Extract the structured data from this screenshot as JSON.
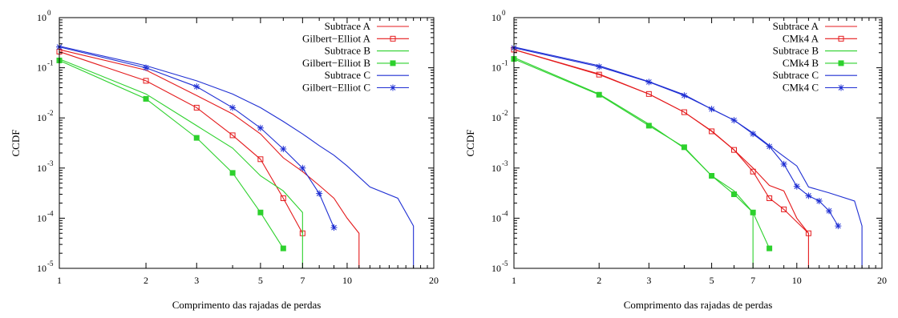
{
  "colors": {
    "red": "#e41a1c",
    "green": "#2dd12d",
    "blue": "#1f2fd3"
  },
  "chart_data": [
    {
      "type": "line",
      "xscale": "log",
      "yscale": "log",
      "xlim": [
        1,
        20
      ],
      "ylim": [
        1e-05,
        1
      ],
      "xlabel": "Comprimento das rajadas de perdas",
      "ylabel": "CCDF",
      "x_ticks": [
        1,
        2,
        3,
        5,
        7,
        10,
        20
      ],
      "x_tick_labels": [
        "1",
        "2",
        "3",
        "5",
        "7",
        "10",
        "20"
      ],
      "y_ticks": [
        1,
        0.1,
        0.01,
        0.001,
        0.0001,
        1e-05
      ],
      "y_tick_mantissa": [
        "10",
        "10",
        "10",
        "10",
        "10",
        "10"
      ],
      "y_tick_exponents": [
        "0",
        "-1",
        "-2",
        "-3",
        "-4",
        "-5"
      ],
      "legend_position": "top-right",
      "series": [
        {
          "name": "Subtrace A",
          "color": "red",
          "marker": "none",
          "x": [
            1,
            2,
            3,
            4,
            5,
            6,
            7,
            8,
            9,
            10,
            11,
            11
          ],
          "y": [
            0.23,
            0.09,
            0.028,
            0.012,
            0.0048,
            0.0016,
            0.00085,
            0.00045,
            0.00025,
            0.0001,
            5e-05,
            1e-05
          ]
        },
        {
          "name": "Gilbert−Elliot A",
          "color": "red",
          "marker": "square",
          "x": [
            1,
            2,
            3,
            4,
            5,
            6,
            7
          ],
          "y": [
            0.21,
            0.055,
            0.016,
            0.0045,
            0.0015,
            0.00025,
            5e-05
          ]
        },
        {
          "name": "Subtrace B",
          "color": "green",
          "marker": "none",
          "x": [
            1,
            2,
            3,
            4,
            5,
            6,
            7,
            7
          ],
          "y": [
            0.15,
            0.03,
            0.007,
            0.0025,
            0.0007,
            0.00035,
            0.00013,
            1e-05
          ]
        },
        {
          "name": "Gilbert−Elliot B",
          "color": "green",
          "marker": "filled-square",
          "x": [
            1,
            2,
            3,
            4,
            5,
            6
          ],
          "y": [
            0.14,
            0.024,
            0.004,
            0.0008,
            0.00013,
            2.5e-05
          ]
        },
        {
          "name": "Subtrace C",
          "color": "blue",
          "marker": "none",
          "x": [
            1,
            2,
            3,
            4,
            5,
            6,
            7,
            8,
            9,
            10,
            12,
            15,
            17,
            17
          ],
          "y": [
            0.27,
            0.11,
            0.055,
            0.03,
            0.016,
            0.0085,
            0.0048,
            0.0028,
            0.0018,
            0.0011,
            0.00042,
            0.00025,
            7e-05,
            1e-05
          ]
        },
        {
          "name": "Gilbert−Elliot C",
          "color": "blue",
          "marker": "star",
          "x": [
            1,
            2,
            3,
            4,
            5,
            6,
            7,
            8,
            9
          ],
          "y": [
            0.26,
            0.1,
            0.042,
            0.016,
            0.0063,
            0.0024,
            0.001,
            0.00031,
            6.5e-05
          ]
        }
      ]
    },
    {
      "type": "line",
      "xscale": "log",
      "yscale": "log",
      "xlim": [
        1,
        20
      ],
      "ylim": [
        1e-05,
        1
      ],
      "xlabel": "Comprimento das rajadas de perdas",
      "ylabel": "CCDF",
      "x_ticks": [
        1,
        2,
        3,
        5,
        7,
        10,
        20
      ],
      "x_tick_labels": [
        "1",
        "2",
        "3",
        "5",
        "7",
        "10",
        "20"
      ],
      "y_ticks": [
        1,
        0.1,
        0.01,
        0.001,
        0.0001,
        1e-05
      ],
      "y_tick_mantissa": [
        "10",
        "10",
        "10",
        "10",
        "10",
        "10"
      ],
      "y_tick_exponents": [
        "0",
        "-1",
        "-2",
        "-3",
        "-4",
        "-5"
      ],
      "legend_position": "top-right",
      "series": [
        {
          "name": "Subtrace A",
          "color": "red",
          "marker": "none",
          "x": [
            1,
            2,
            3,
            4,
            5,
            6,
            7,
            8,
            9,
            10,
            11,
            11
          ],
          "y": [
            0.23,
            0.075,
            0.03,
            0.013,
            0.0055,
            0.0023,
            0.001,
            0.00045,
            0.00035,
            0.0001,
            5e-05,
            1e-05
          ]
        },
        {
          "name": "CMk4 A",
          "color": "red",
          "marker": "square",
          "x": [
            1,
            2,
            3,
            4,
            5,
            6,
            7,
            8,
            9,
            11
          ],
          "y": [
            0.23,
            0.073,
            0.03,
            0.013,
            0.0054,
            0.0023,
            0.00085,
            0.00025,
            0.00015,
            5e-05
          ]
        },
        {
          "name": "Subtrace B",
          "color": "green",
          "marker": "none",
          "x": [
            1,
            2,
            3,
            4,
            5,
            6,
            7,
            7
          ],
          "y": [
            0.16,
            0.03,
            0.0075,
            0.0025,
            0.0007,
            0.00035,
            0.00013,
            1e-05
          ]
        },
        {
          "name": "CMk4 B",
          "color": "green",
          "marker": "filled-square",
          "x": [
            1,
            2,
            3,
            4,
            5,
            6,
            7,
            8
          ],
          "y": [
            0.15,
            0.029,
            0.007,
            0.0026,
            0.0007,
            0.0003,
            0.00013,
            2.5e-05
          ]
        },
        {
          "name": "Subtrace C",
          "color": "blue",
          "marker": "none",
          "x": [
            1,
            2,
            3,
            4,
            5,
            6,
            7,
            8,
            9,
            10,
            11,
            13,
            16,
            17,
            17
          ],
          "y": [
            0.26,
            0.11,
            0.053,
            0.029,
            0.015,
            0.009,
            0.005,
            0.0028,
            0.0017,
            0.0011,
            0.00042,
            0.00032,
            0.00022,
            7e-05,
            1e-05
          ]
        },
        {
          "name": "CMk4 C",
          "color": "blue",
          "marker": "star",
          "x": [
            1,
            2,
            3,
            4,
            5,
            6,
            7,
            8,
            9,
            10,
            11,
            12,
            13,
            14
          ],
          "y": [
            0.25,
            0.105,
            0.052,
            0.028,
            0.015,
            0.009,
            0.0048,
            0.0027,
            0.0012,
            0.00043,
            0.00028,
            0.00022,
            0.00014,
            7e-05
          ]
        }
      ]
    }
  ]
}
